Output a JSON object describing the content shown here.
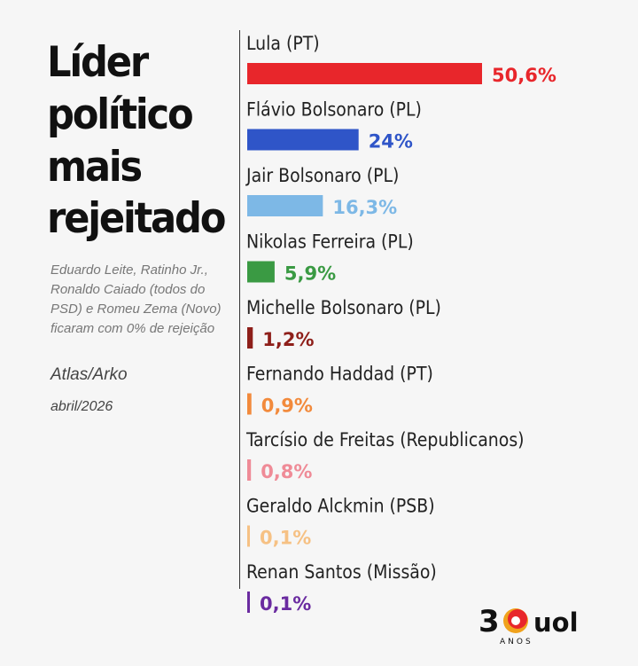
{
  "chart_data": {
    "type": "bar",
    "orientation": "horizontal",
    "title": "Líder político mais rejeitado",
    "note": "Eduardo Leite, Ratinho Jr., Ronaldo Caiado (todos do PSD) e Romeu Zema (Novo) ficaram com 0% de rejeição",
    "source": "Atlas/Arko",
    "date": "abril/2026",
    "unit": "%",
    "categories": [
      "Lula (PT)",
      "Flávio Bolsonaro (PL)",
      "Jair Bolsonaro (PL)",
      "Nikolas Ferreira (PL)",
      "Michelle Bolsonaro (PL)",
      "Fernando Haddad (PT)",
      "Tarcísio de Freitas (Republicanos)",
      "Geraldo Alckmin (PSB)",
      "Renan Santos (Missão)"
    ],
    "values": [
      50.6,
      24,
      16.3,
      5.9,
      1.2,
      0.9,
      0.8,
      0.1,
      0.1
    ],
    "value_labels": [
      "50,6%",
      "24%",
      "16,3%",
      "5,9%",
      "1,2%",
      "0,9%",
      "0,8%",
      "0,1%",
      "0,1%"
    ],
    "colors": [
      "#e8262b",
      "#2f55c8",
      "#7db8e6",
      "#3a9a43",
      "#8e1f1a",
      "#f28a3c",
      "#ef8b97",
      "#f6c184",
      "#6a2ba0"
    ],
    "label_colors": [
      "#e8262b",
      "#2f55c8",
      "#7db8e6",
      "#3a9a43",
      "#8e1f1a",
      "#f28a3c",
      "#ef8b97",
      "#f6c184",
      "#6a2ba0"
    ]
  },
  "brand": {
    "number": "30",
    "anos": "ANOS",
    "name": "UOL"
  }
}
